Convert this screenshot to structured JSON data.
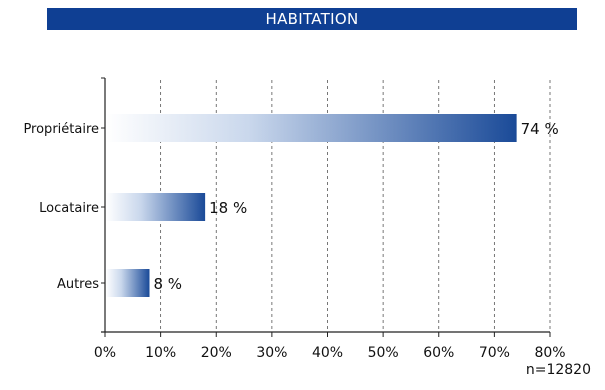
{
  "title": "HABITATION",
  "sample_size": "n=12820",
  "colors": {
    "title_bg": "#0f3f93",
    "bar_dark": "#1a4a98",
    "bar_light": "#ffffff"
  },
  "chart_data": {
    "type": "bar",
    "orientation": "horizontal",
    "title": "HABITATION",
    "categories": [
      "Propriétaire",
      "Locataire",
      "Autres"
    ],
    "values": [
      74,
      18,
      8
    ],
    "value_labels": [
      "74 %",
      "18 %",
      "8 %"
    ],
    "xlim": [
      0,
      80
    ],
    "x_ticks": [
      "0%",
      "10%",
      "20%",
      "30%",
      "40%",
      "50%",
      "60%",
      "70%",
      "80%"
    ],
    "grid": "vertical-dashed",
    "annotation": "n=12820"
  }
}
